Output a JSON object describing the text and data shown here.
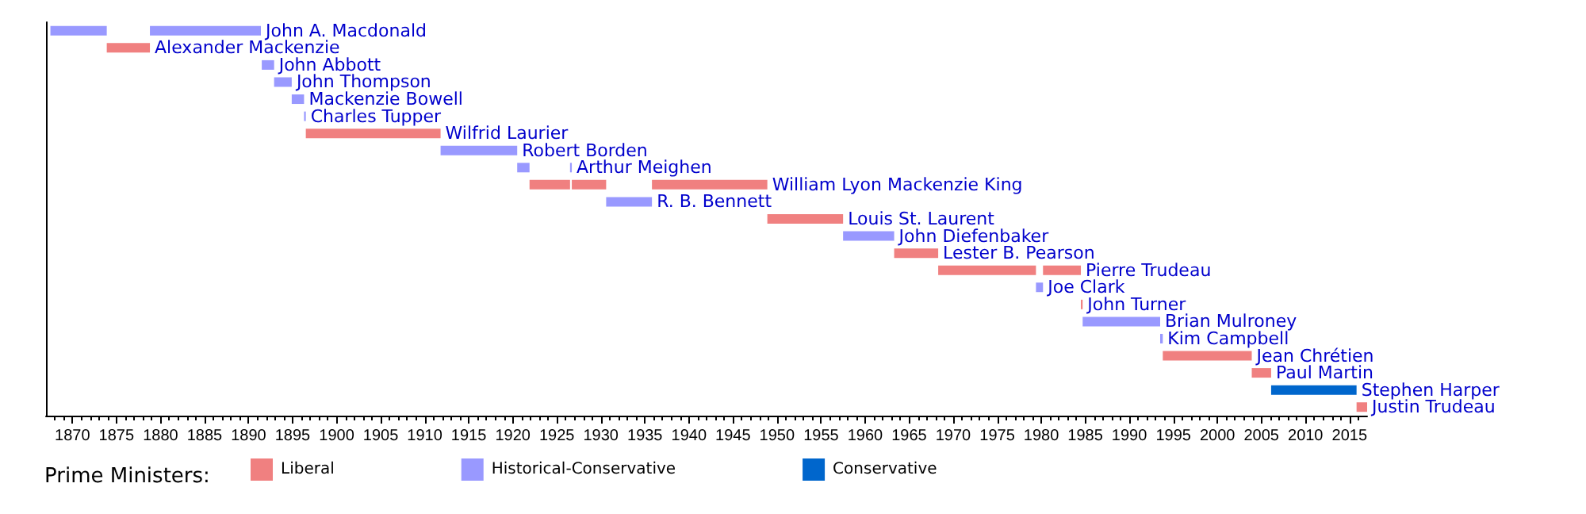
{
  "chart_data": {
    "type": "bar",
    "orientation": "horizontal",
    "legend_title": "Prime Ministers:",
    "legend": "bottom",
    "grid": false,
    "tick_labels": "x",
    "categories": [
      "John A. Macdonald",
      "Alexander Mackenzie",
      "John Abbott",
      "John Thompson",
      "Mackenzie Bowell",
      "Charles Tupper",
      "Wilfrid Laurier",
      "Robert Borden",
      "Arthur Meighen",
      "William Lyon Mackenzie King",
      "R. B. Bennett",
      "Louis St. Laurent",
      "John Diefenbaker",
      "Lester B. Pearson",
      "Pierre Trudeau",
      "Joe Clark",
      "John Turner",
      "Brian Mulroney",
      "Kim Campbell",
      "Jean Chrétien",
      "Paul Martin",
      "Stephen Harper",
      "Justin Trudeau"
    ],
    "xlim": [
      1867,
      2017
    ],
    "xticks": [
      {
        "value": 1868,
        "label": null
      },
      {
        "value": 1869,
        "label": null
      },
      1870,
      {
        "value": 1871,
        "label": null
      },
      {
        "value": 1872,
        "label": null
      },
      {
        "value": 1873,
        "label": null
      },
      {
        "value": 1874,
        "label": null
      },
      1875,
      {
        "value": 1876,
        "label": null
      },
      {
        "value": 1877,
        "label": null
      },
      {
        "value": 1878,
        "label": null
      },
      {
        "value": 1879,
        "label": null
      },
      1880,
      {
        "value": 1881,
        "label": null
      },
      {
        "value": 1882,
        "label": null
      },
      {
        "value": 1883,
        "label": null
      },
      {
        "value": 1884,
        "label": null
      },
      1885,
      {
        "value": 1886,
        "label": null
      },
      {
        "value": 1887,
        "label": null
      },
      {
        "value": 1888,
        "label": null
      },
      {
        "value": 1889,
        "label": null
      },
      1890,
      {
        "value": 1891,
        "label": null
      },
      {
        "value": 1892,
        "label": null
      },
      {
        "value": 1893,
        "label": null
      },
      {
        "value": 1894,
        "label": null
      },
      1895,
      {
        "value": 1896,
        "label": null
      },
      {
        "value": 1897,
        "label": null
      },
      {
        "value": 1898,
        "label": null
      },
      {
        "value": 1899,
        "label": null
      },
      1900,
      {
        "value": 1901,
        "label": null
      },
      {
        "value": 1902,
        "label": null
      },
      {
        "value": 1903,
        "label": null
      },
      {
        "value": 1904,
        "label": null
      },
      1905,
      {
        "value": 1906,
        "label": null
      },
      {
        "value": 1907,
        "label": null
      },
      {
        "value": 1908,
        "label": null
      },
      {
        "value": 1909,
        "label": null
      },
      1910,
      {
        "value": 1911,
        "label": null
      },
      {
        "value": 1912,
        "label": null
      },
      {
        "value": 1913,
        "label": null
      },
      {
        "value": 1914,
        "label": null
      },
      1915,
      {
        "value": 1916,
        "label": null
      },
      {
        "value": 1917,
        "label": null
      },
      {
        "value": 1918,
        "label": null
      },
      {
        "value": 1919,
        "label": null
      },
      1920,
      {
        "value": 1921,
        "label": null
      },
      {
        "value": 1922,
        "label": null
      },
      {
        "value": 1923,
        "label": null
      },
      {
        "value": 1924,
        "label": null
      },
      1925,
      {
        "value": 1926,
        "label": null
      },
      {
        "value": 1927,
        "label": null
      },
      {
        "value": 1928,
        "label": null
      },
      {
        "value": 1929,
        "label": null
      },
      1930,
      {
        "value": 1931,
        "label": null
      },
      {
        "value": 1932,
        "label": null
      },
      {
        "value": 1933,
        "label": null
      },
      {
        "value": 1934,
        "label": null
      },
      1935,
      {
        "value": 1936,
        "label": null
      },
      {
        "value": 1937,
        "label": null
      },
      {
        "value": 1938,
        "label": null
      },
      {
        "value": 1939,
        "label": null
      },
      1940,
      {
        "value": 1941,
        "label": null
      },
      {
        "value": 1942,
        "label": null
      },
      {
        "value": 1943,
        "label": null
      },
      {
        "value": 1944,
        "label": null
      },
      1945,
      {
        "value": 1946,
        "label": null
      },
      {
        "value": 1947,
        "label": null
      },
      {
        "value": 1948,
        "label": null
      },
      {
        "value": 1949,
        "label": null
      },
      1950,
      {
        "value": 1951,
        "label": null
      },
      {
        "value": 1952,
        "label": null
      },
      {
        "value": 1953,
        "label": null
      },
      {
        "value": 1954,
        "label": null
      },
      1955,
      {
        "value": 1956,
        "label": null
      },
      {
        "value": 1957,
        "label": null
      },
      {
        "value": 1958,
        "label": null
      },
      {
        "value": 1959,
        "label": null
      },
      1960,
      {
        "value": 1961,
        "label": null
      },
      {
        "value": 1962,
        "label": null
      },
      {
        "value": 1963,
        "label": null
      },
      {
        "value": 1964,
        "label": null
      },
      1965,
      {
        "value": 1966,
        "label": null
      },
      {
        "value": 1967,
        "label": null
      },
      {
        "value": 1968,
        "label": null
      },
      {
        "value": 1969,
        "label": null
      },
      1970,
      {
        "value": 1971,
        "label": null
      },
      {
        "value": 1972,
        "label": null
      },
      {
        "value": 1973,
        "label": null
      },
      {
        "value": 1974,
        "label": null
      },
      1975,
      {
        "value": 1976,
        "label": null
      },
      {
        "value": 1977,
        "label": null
      },
      {
        "value": 1978,
        "label": null
      },
      {
        "value": 1979,
        "label": null
      },
      1980,
      {
        "value": 1981,
        "label": null
      },
      {
        "value": 1982,
        "label": null
      },
      {
        "value": 1983,
        "label": null
      },
      {
        "value": 1984,
        "label": null
      },
      1985,
      {
        "value": 1986,
        "label": null
      },
      {
        "value": 1987,
        "label": null
      },
      {
        "value": 1988,
        "label": null
      },
      {
        "value": 1989,
        "label": null
      },
      1990,
      {
        "value": 1991,
        "label": null
      },
      {
        "value": 1992,
        "label": null
      },
      {
        "value": 1993,
        "label": null
      },
      {
        "value": 1994,
        "label": null
      },
      1995,
      {
        "value": 1996,
        "label": null
      },
      {
        "value": 1997,
        "label": null
      },
      {
        "value": 1998,
        "label": null
      },
      {
        "value": 1999,
        "label": null
      },
      2000,
      {
        "value": 2001,
        "label": null
      },
      {
        "value": 2002,
        "label": null
      },
      {
        "value": 2003,
        "label": null
      },
      {
        "value": 2004,
        "label": null
      },
      2005,
      {
        "value": 2006,
        "label": null
      },
      {
        "value": 2007,
        "label": null
      },
      {
        "value": 2008,
        "label": null
      },
      {
        "value": 2009,
        "label": null
      },
      2010,
      {
        "value": 2011,
        "label": null
      },
      {
        "value": 2012,
        "label": null
      },
      {
        "value": 2013,
        "label": null
      },
      {
        "value": 2014,
        "label": null
      },
      2015,
      {
        "value": 2016,
        "label": null
      }
    ],
    "series": [
      {
        "name": "Liberal",
        "color": "#f08080",
        "base": [
          null,
          1873.9,
          null,
          null,
          null,
          null,
          1896.5,
          null,
          null,
          1921.9,
          null,
          1948.9,
          null,
          1963.3,
          1968.3,
          null,
          1984.5,
          null,
          null,
          1993.8,
          2003.9,
          null,
          2015.8
        ],
        "values": [
          null,
          4.9,
          null,
          null,
          null,
          null,
          15.3,
          null,
          null,
          4.6,
          null,
          8.6,
          null,
          5.0,
          11.1,
          null,
          0.2,
          null,
          null,
          10.1,
          2.2,
          null,
          1.2
        ]
      },
      {
        "name": "Historical-Conservative",
        "color": "#9999ff",
        "base": [
          1867.5,
          null,
          1891.5,
          1892.9,
          1894.9,
          1896.3,
          null,
          1911.8,
          1920.5,
          null,
          1930.6,
          null,
          1957.5,
          null,
          null,
          1979.4,
          null,
          1984.7,
          1993.5,
          null,
          null,
          null,
          null
        ],
        "values": [
          6.4,
          null,
          1.4,
          2.0,
          1.4,
          0.2,
          null,
          8.7,
          1.4,
          null,
          5.2,
          null,
          5.8,
          null,
          null,
          0.8,
          null,
          8.8,
          0.3,
          null,
          null,
          null,
          null
        ]
      },
      {
        "name": "Conservative",
        "color": "#0066cc",
        "base": [
          null,
          null,
          null,
          null,
          null,
          null,
          null,
          null,
          null,
          null,
          null,
          null,
          null,
          null,
          null,
          null,
          null,
          null,
          null,
          null,
          null,
          2006.1,
          null
        ],
        "values": [
          null,
          null,
          null,
          null,
          null,
          null,
          null,
          null,
          null,
          null,
          null,
          null,
          null,
          null,
          null,
          null,
          null,
          null,
          null,
          null,
          null,
          9.7,
          null
        ]
      },
      {
        "color": "#f08080",
        "base": [
          null,
          null,
          null,
          null,
          null,
          null,
          null,
          null,
          null,
          1926.7,
          null,
          null,
          null,
          null,
          1980.2,
          null,
          null,
          null,
          null,
          null,
          null,
          null,
          null
        ],
        "values": [
          null,
          null,
          null,
          null,
          null,
          null,
          null,
          null,
          null,
          3.9,
          null,
          null,
          null,
          null,
          4.3,
          null,
          null,
          null,
          null,
          null,
          null,
          null,
          null
        ]
      },
      {
        "color": "#f08080",
        "base": [
          null,
          null,
          null,
          null,
          null,
          null,
          null,
          null,
          null,
          1935.8,
          null,
          null,
          null,
          null,
          null,
          null,
          null,
          null,
          null,
          null,
          null,
          null,
          null
        ],
        "values": [
          null,
          null,
          null,
          null,
          null,
          null,
          null,
          null,
          null,
          13.1,
          null,
          null,
          null,
          null,
          null,
          null,
          null,
          null,
          null,
          null,
          null,
          null,
          null
        ]
      },
      {
        "color": "#9999ff",
        "base": [
          1878.8,
          null,
          null,
          null,
          null,
          null,
          null,
          null,
          1926.5,
          null,
          null,
          null,
          null,
          null,
          null,
          null,
          null,
          null,
          null,
          null,
          null,
          null,
          null
        ],
        "values": [
          12.6,
          null,
          null,
          null,
          null,
          null,
          null,
          null,
          0.2,
          null,
          null,
          null,
          null,
          null,
          null,
          null,
          null,
          null,
          null,
          null,
          null,
          null,
          null
        ]
      }
    ]
  }
}
